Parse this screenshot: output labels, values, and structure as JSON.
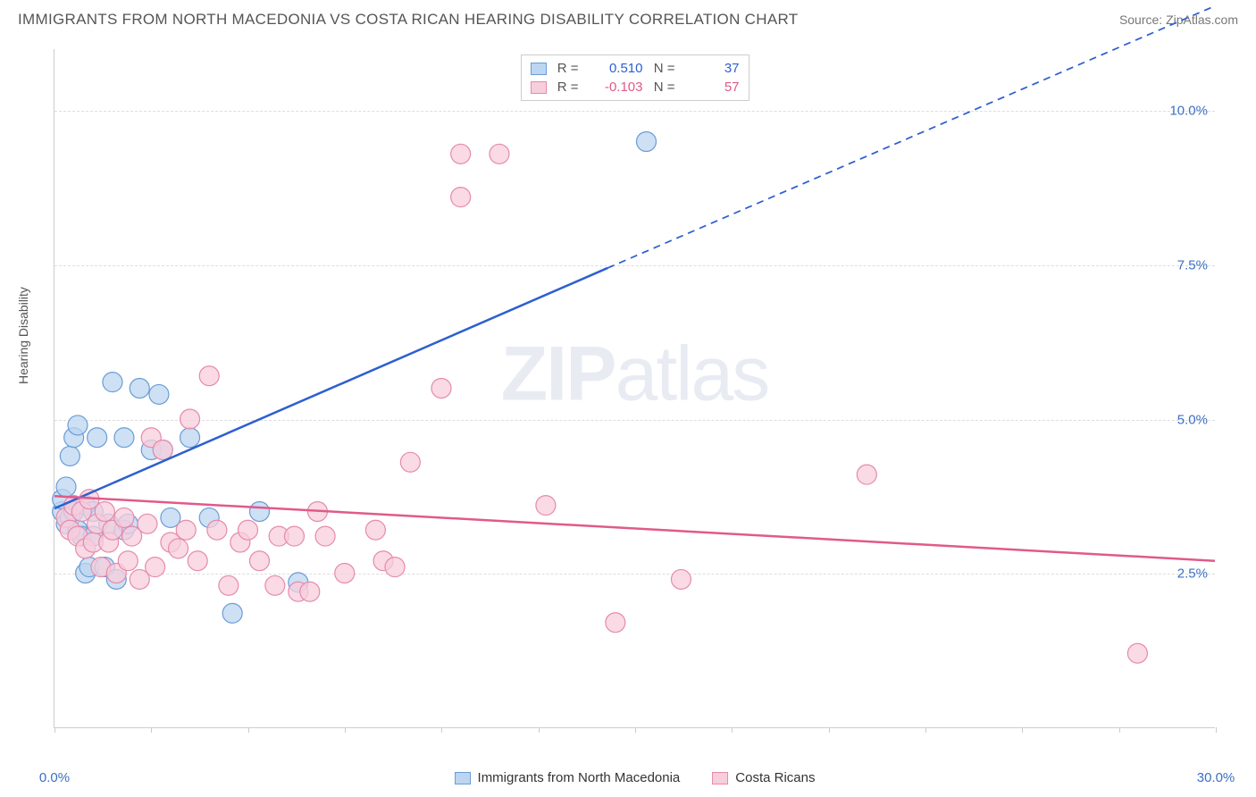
{
  "header": {
    "title": "IMMIGRANTS FROM NORTH MACEDONIA VS COSTA RICAN HEARING DISABILITY CORRELATION CHART",
    "source_label": "Source: ",
    "source_value": "ZipAtlas.com"
  },
  "watermark": {
    "part1": "ZIP",
    "part2": "atlas"
  },
  "chart": {
    "type": "scatter",
    "background_color": "#ffffff",
    "grid_color": "#dddddd",
    "axis_color": "#cccccc",
    "tick_label_color": "#3b6fc4",
    "y_axis_label": "Hearing Disability",
    "xlim": [
      0,
      30
    ],
    "ylim": [
      0,
      11
    ],
    "x_ticks": [
      0,
      2.5,
      5,
      7.5,
      10,
      12.5,
      15,
      17.5,
      20,
      22.5,
      25,
      27.5,
      30
    ],
    "x_tick_labels": {
      "0": "0.0%",
      "30": "30.0%"
    },
    "y_ticks": [
      2.5,
      5.0,
      7.5,
      10.0
    ],
    "y_tick_labels": [
      "2.5%",
      "5.0%",
      "7.5%",
      "10.0%"
    ],
    "series": [
      {
        "name": "Immigrants from North Macedonia",
        "marker_fill": "#bcd5f0",
        "marker_stroke": "#6a9cd6",
        "marker_radius": 11,
        "line_color": "#2d5fd0",
        "line_width": 2.5,
        "r_value": "0.510",
        "n_value": "37",
        "regression": {
          "x1": 0,
          "y1": 3.55,
          "x2": 14.3,
          "y2": 7.45,
          "dash_x2": 30,
          "dash_y2": 11.7
        },
        "points": [
          [
            0.2,
            3.5
          ],
          [
            0.2,
            3.7
          ],
          [
            0.3,
            3.3
          ],
          [
            0.3,
            3.9
          ],
          [
            0.4,
            3.4
          ],
          [
            0.4,
            4.4
          ],
          [
            0.5,
            3.5
          ],
          [
            0.5,
            4.7
          ],
          [
            0.6,
            3.2
          ],
          [
            0.6,
            4.9
          ],
          [
            0.7,
            3.1
          ],
          [
            0.8,
            2.5
          ],
          [
            0.8,
            3.6
          ],
          [
            0.9,
            2.6
          ],
          [
            1.0,
            3.1
          ],
          [
            1.0,
            3.5
          ],
          [
            1.1,
            4.7
          ],
          [
            1.3,
            2.6
          ],
          [
            1.4,
            3.3
          ],
          [
            1.5,
            5.6
          ],
          [
            1.6,
            2.4
          ],
          [
            1.8,
            3.2
          ],
          [
            1.8,
            4.7
          ],
          [
            1.9,
            3.3
          ],
          [
            2.2,
            5.5
          ],
          [
            2.5,
            4.5
          ],
          [
            2.7,
            5.4
          ],
          [
            2.8,
            4.5
          ],
          [
            3.0,
            3.4
          ],
          [
            3.5,
            4.7
          ],
          [
            4.0,
            3.4
          ],
          [
            4.6,
            1.85
          ],
          [
            5.3,
            3.5
          ],
          [
            6.3,
            2.35
          ],
          [
            15.3,
            9.5
          ]
        ]
      },
      {
        "name": "Costa Ricans",
        "marker_fill": "#f7cedc",
        "marker_stroke": "#e68aac",
        "marker_radius": 11,
        "line_color": "#e05a8a",
        "line_width": 2.5,
        "r_value": "-0.103",
        "n_value": "57",
        "regression": {
          "x1": 0,
          "y1": 3.75,
          "x2": 30,
          "y2": 2.7
        },
        "points": [
          [
            0.3,
            3.4
          ],
          [
            0.4,
            3.2
          ],
          [
            0.5,
            3.6
          ],
          [
            0.6,
            3.1
          ],
          [
            0.7,
            3.5
          ],
          [
            0.8,
            2.9
          ],
          [
            0.9,
            3.7
          ],
          [
            1.0,
            3.0
          ],
          [
            1.1,
            3.3
          ],
          [
            1.2,
            2.6
          ],
          [
            1.3,
            3.5
          ],
          [
            1.4,
            3.0
          ],
          [
            1.5,
            3.2
          ],
          [
            1.6,
            2.5
          ],
          [
            1.8,
            3.4
          ],
          [
            1.9,
            2.7
          ],
          [
            2.0,
            3.1
          ],
          [
            2.2,
            2.4
          ],
          [
            2.4,
            3.3
          ],
          [
            2.5,
            4.7
          ],
          [
            2.6,
            2.6
          ],
          [
            2.8,
            4.5
          ],
          [
            3.0,
            3.0
          ],
          [
            3.2,
            2.9
          ],
          [
            3.4,
            3.2
          ],
          [
            3.5,
            5.0
          ],
          [
            3.7,
            2.7
          ],
          [
            4.0,
            5.7
          ],
          [
            4.2,
            3.2
          ],
          [
            4.5,
            2.3
          ],
          [
            4.8,
            3.0
          ],
          [
            5.0,
            3.2
          ],
          [
            5.3,
            2.7
          ],
          [
            5.7,
            2.3
          ],
          [
            5.8,
            3.1
          ],
          [
            6.2,
            3.1
          ],
          [
            6.3,
            2.2
          ],
          [
            6.6,
            2.2
          ],
          [
            6.8,
            3.5
          ],
          [
            7.0,
            3.1
          ],
          [
            7.5,
            2.5
          ],
          [
            8.3,
            3.2
          ],
          [
            8.5,
            2.7
          ],
          [
            8.8,
            2.6
          ],
          [
            9.2,
            4.3
          ],
          [
            10.0,
            5.5
          ],
          [
            10.5,
            8.6
          ],
          [
            10.5,
            9.3
          ],
          [
            11.5,
            9.3
          ],
          [
            12.7,
            3.6
          ],
          [
            14.5,
            1.7
          ],
          [
            16.2,
            2.4
          ],
          [
            21.0,
            4.1
          ],
          [
            28.0,
            1.2
          ]
        ]
      }
    ],
    "legend": {
      "stats_labels": {
        "r": "R  =",
        "n": "N  ="
      }
    }
  }
}
